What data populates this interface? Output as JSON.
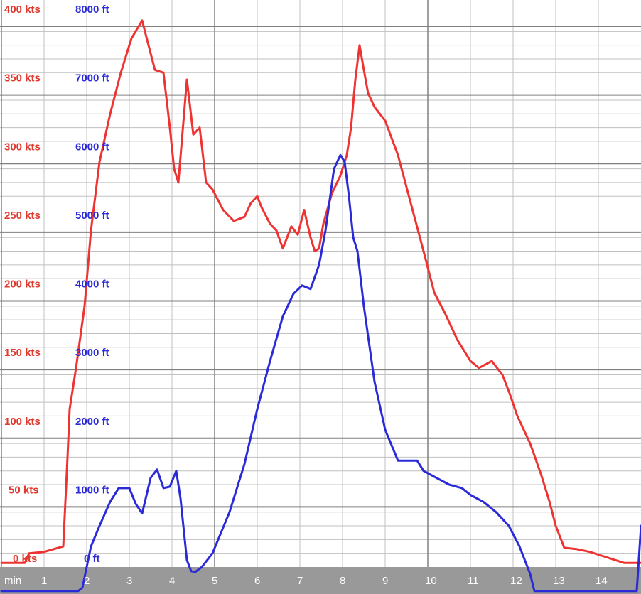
{
  "chart_data": {
    "type": "line",
    "x_unit_label": "min",
    "x_ticks": [
      1,
      2,
      3,
      4,
      5,
      6,
      7,
      8,
      9,
      10,
      11,
      12,
      13,
      14
    ],
    "x_tick_labels": [
      "1",
      "2",
      "3",
      "4",
      "5",
      "6",
      "7",
      "8",
      "9",
      "10",
      "11",
      "12",
      "13",
      "14"
    ],
    "xlim": [
      0,
      15
    ],
    "grid": true,
    "y_axes": [
      {
        "unit": "kts",
        "ylim": [
          0,
          400
        ],
        "ticks": [
          0,
          50,
          100,
          150,
          200,
          250,
          300,
          350,
          400
        ],
        "tick_labels": [
          "0 kts",
          "50 kts",
          "100 kts",
          "150 kts",
          "200 kts",
          "250 kts",
          "300 kts",
          "350 kts",
          "400 kts"
        ],
        "color": "#e03a2e"
      },
      {
        "unit": "ft",
        "ylim": [
          0,
          8000
        ],
        "ticks": [
          0,
          1000,
          2000,
          3000,
          4000,
          5000,
          6000,
          7000,
          8000
        ],
        "tick_labels": [
          "0 ft",
          "1000 ft",
          "2000 ft",
          "3000 ft",
          "4000 ft",
          "5000 ft",
          "6000 ft",
          "7000 ft",
          "8000 ft"
        ],
        "color": "#2a2ad8"
      }
    ],
    "series": [
      {
        "axis": 0,
        "color": "#ee3333",
        "x": [
          0,
          0.55,
          0.65,
          1.0,
          1.45,
          1.55,
          1.6,
          1.75,
          1.95,
          2.1,
          2.3,
          2.55,
          2.8,
          3.05,
          3.3,
          3.45,
          3.6,
          3.8,
          3.95,
          4.05,
          4.15,
          4.35,
          4.5,
          4.65,
          4.8,
          4.95,
          5.2,
          5.45,
          5.7,
          5.85,
          6.0,
          6.1,
          6.3,
          6.45,
          6.6,
          6.8,
          6.95,
          7.1,
          7.25,
          7.35,
          7.45,
          7.55,
          7.75,
          7.95,
          8.1,
          8.2,
          8.3,
          8.4,
          8.5,
          8.6,
          8.75,
          9.0,
          9.3,
          9.6,
          9.9,
          10.15,
          10.4,
          10.7,
          11.0,
          11.2,
          11.5,
          11.75,
          11.9,
          12.1,
          12.4,
          12.65,
          12.85,
          13.0,
          13.2,
          13.5,
          13.8,
          14.1,
          14.4,
          14.6,
          15.0
        ],
        "values": [
          3,
          3,
          10,
          11,
          15,
          80,
          115,
          145,
          190,
          245,
          295,
          330,
          360,
          385,
          398,
          380,
          362,
          360,
          320,
          290,
          280,
          355,
          315,
          320,
          280,
          275,
          260,
          252,
          255,
          265,
          270,
          262,
          250,
          245,
          232,
          248,
          242,
          260,
          240,
          230,
          232,
          250,
          272,
          285,
          300,
          320,
          355,
          380,
          362,
          345,
          335,
          325,
          300,
          265,
          230,
          200,
          185,
          165,
          150,
          145,
          150,
          140,
          128,
          110,
          90,
          68,
          48,
          30,
          14,
          13,
          11,
          8,
          5,
          3,
          3
        ]
      },
      {
        "axis": 1,
        "color": "#2a2ad8",
        "x": [
          0,
          1.8,
          1.9,
          2.1,
          2.3,
          2.55,
          2.75,
          3.0,
          3.15,
          3.3,
          3.5,
          3.65,
          3.8,
          3.95,
          4.1,
          4.2,
          4.35,
          4.45,
          4.55,
          4.7,
          4.95,
          5.15,
          5.35,
          5.7,
          6.0,
          6.3,
          6.6,
          6.85,
          7.05,
          7.25,
          7.45,
          7.6,
          7.8,
          7.95,
          8.05,
          8.15,
          8.25,
          8.35,
          8.5,
          8.75,
          9.0,
          9.3,
          9.55,
          9.75,
          9.9,
          10.2,
          10.5,
          10.8,
          11.0,
          11.3,
          11.6,
          11.9,
          12.15,
          12.4,
          12.5,
          12.6,
          14.9,
          15.0
        ],
        "values": [
          -350,
          -350,
          -300,
          300,
          600,
          950,
          1150,
          1150,
          920,
          780,
          1300,
          1420,
          1150,
          1170,
          1400,
          1000,
          100,
          -60,
          -70,
          0,
          200,
          500,
          800,
          1500,
          2300,
          3000,
          3650,
          3980,
          4100,
          4050,
          4400,
          4900,
          5800,
          6000,
          5900,
          5400,
          4800,
          4600,
          3800,
          2700,
          2000,
          1550,
          1550,
          1550,
          1400,
          1300,
          1200,
          1150,
          1050,
          950,
          800,
          600,
          300,
          -100,
          -350,
          -350,
          -350,
          600
        ]
      }
    ]
  },
  "colors": {
    "grid_major": "#808080",
    "grid_minor": "#c0c0c0",
    "x_band": "#999999"
  }
}
